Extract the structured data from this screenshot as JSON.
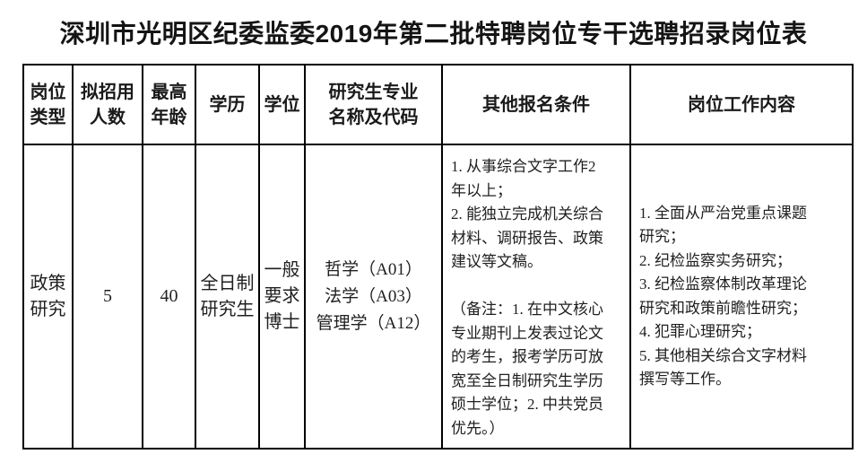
{
  "page_title": "深圳市光明区纪委监委2019年第二批特聘岗位专干选聘招录岗位表",
  "colors": {
    "text": "#1f1f1f",
    "border": "#000000",
    "background": "#ffffff"
  },
  "table": {
    "headers": [
      "岗位\n类型",
      "拟招用\n人数",
      "最高\n年龄",
      "学历",
      "学位",
      "研究生专业\n名称及代码",
      "其他报名条件",
      "岗位工作内容"
    ],
    "row": {
      "position_type": "政策\n研究",
      "planned_recruits": "5",
      "max_age": "40",
      "education": "全日制\n研究生",
      "degree": "一般\n要求\n博士",
      "graduate_majors": "哲学（A01）\n法学（A03）\n管理学（A12）",
      "other_conditions": "1. 从事综合文字工作2\n年以上；\n2. 能独立完成机关综合\n材料、调研报告、政策\n建议等文稿。\n\n（备注：1. 在中文核心\n专业期刊上发表过论文\n的考生，报考学历可放\n宽至全日制研究生学历\n硕士学位；2. 中共党员\n优先。）",
      "job_duties": "1. 全面从严治党重点课题\n研究；\n2. 纪检监察实务研究；\n3. 纪检监察体制改革理论\n研究和政策前瞻性研究；\n4. 犯罪心理研究；\n5. 其他相关综合文字材料\n撰写等工作。"
    }
  }
}
